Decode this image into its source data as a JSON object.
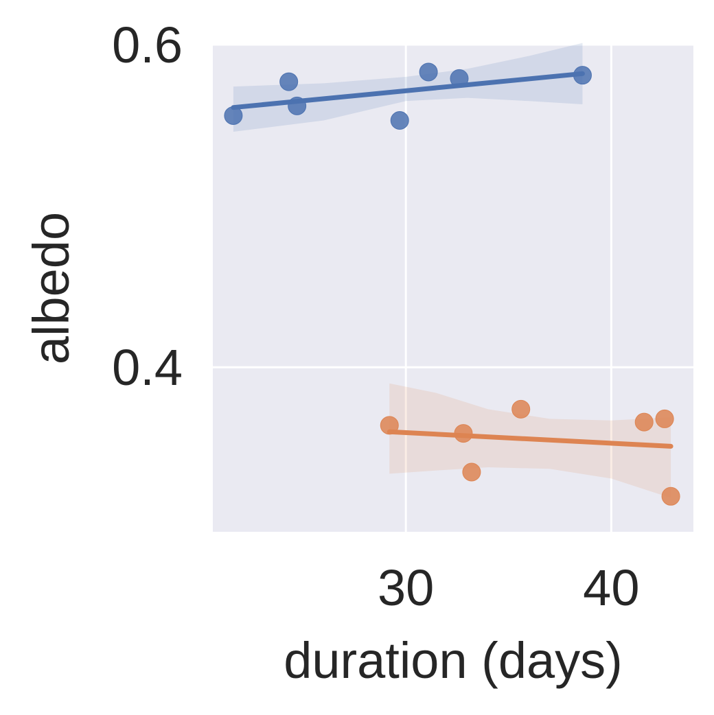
{
  "chart_data": {
    "type": "scatter",
    "xlabel": "duration (days)",
    "ylabel": "albedo",
    "xlim": [
      20.6,
      44.0
    ],
    "ylim": [
      0.298,
      0.6
    ],
    "xticks": [
      30,
      40
    ],
    "yticks": [
      0.4,
      0.6
    ],
    "xtick_labels": [
      "30",
      "40"
    ],
    "ytick_labels": [
      "0.4",
      "0.6"
    ],
    "grid": true,
    "background": "#eaeaf2",
    "series": [
      {
        "color": "#4c72b0",
        "points": [
          {
            "x": 21.6,
            "y": 0.556
          },
          {
            "x": 24.3,
            "y": 0.577
          },
          {
            "x": 24.7,
            "y": 0.562
          },
          {
            "x": 29.7,
            "y": 0.553
          },
          {
            "x": 31.1,
            "y": 0.583
          },
          {
            "x": 32.6,
            "y": 0.579
          },
          {
            "x": 38.6,
            "y": 0.581
          }
        ],
        "fit": [
          {
            "x": 21.6,
            "y": 0.561
          },
          {
            "x": 38.6,
            "y": 0.582
          }
        ],
        "ci_upper": [
          {
            "x": 21.6,
            "y": 0.574
          },
          {
            "x": 26.0,
            "y": 0.576
          },
          {
            "x": 30.0,
            "y": 0.58
          },
          {
            "x": 33.0,
            "y": 0.585
          },
          {
            "x": 36.0,
            "y": 0.593
          },
          {
            "x": 38.6,
            "y": 0.601
          }
        ],
        "ci_lower": [
          {
            "x": 38.6,
            "y": 0.563
          },
          {
            "x": 36.0,
            "y": 0.565
          },
          {
            "x": 33.0,
            "y": 0.567
          },
          {
            "x": 30.0,
            "y": 0.565
          },
          {
            "x": 26.0,
            "y": 0.553
          },
          {
            "x": 21.6,
            "y": 0.546
          }
        ]
      },
      {
        "color": "#dd8452",
        "points": [
          {
            "x": 29.2,
            "y": 0.364
          },
          {
            "x": 32.8,
            "y": 0.359
          },
          {
            "x": 33.2,
            "y": 0.335
          },
          {
            "x": 35.6,
            "y": 0.374
          },
          {
            "x": 41.6,
            "y": 0.366
          },
          {
            "x": 42.6,
            "y": 0.368
          },
          {
            "x": 42.9,
            "y": 0.32
          }
        ],
        "fit": [
          {
            "x": 29.2,
            "y": 0.36
          },
          {
            "x": 42.9,
            "y": 0.351
          }
        ],
        "ci_upper": [
          {
            "x": 29.2,
            "y": 0.39
          },
          {
            "x": 31.5,
            "y": 0.384
          },
          {
            "x": 34.0,
            "y": 0.374
          },
          {
            "x": 37.0,
            "y": 0.368
          },
          {
            "x": 40.0,
            "y": 0.367
          },
          {
            "x": 42.9,
            "y": 0.369
          }
        ],
        "ci_lower": [
          {
            "x": 42.9,
            "y": 0.319
          },
          {
            "x": 40.0,
            "y": 0.331
          },
          {
            "x": 37.0,
            "y": 0.337
          },
          {
            "x": 34.0,
            "y": 0.338
          },
          {
            "x": 31.5,
            "y": 0.336
          },
          {
            "x": 29.2,
            "y": 0.334
          }
        ]
      }
    ]
  }
}
